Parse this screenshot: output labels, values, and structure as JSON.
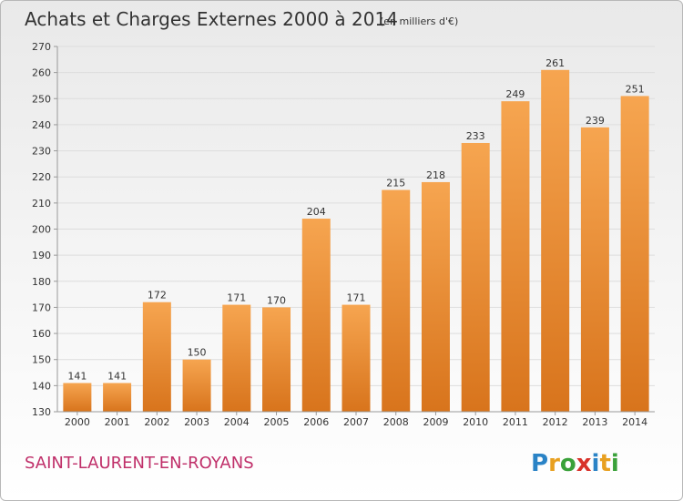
{
  "header": {
    "title": "Achats et Charges Externes 2000 à 2014",
    "subtitle": "(en milliers d'€)"
  },
  "footer": {
    "commune": "SAINT-LAURENT-EN-ROYANS",
    "commune_color": "#c0306a",
    "logo": "Proxiti"
  },
  "colors": {
    "bar_top": "#f6a550",
    "bar_bottom": "#d8741c",
    "grid": "#dddddd",
    "axis": "#999999"
  },
  "chart_data": {
    "type": "bar",
    "categories": [
      "2000",
      "2001",
      "2002",
      "2003",
      "2004",
      "2005",
      "2006",
      "2007",
      "2008",
      "2009",
      "2010",
      "2011",
      "2012",
      "2013",
      "2014"
    ],
    "values": [
      141,
      141,
      172,
      150,
      171,
      170,
      204,
      171,
      215,
      218,
      233,
      249,
      261,
      239,
      251
    ],
    "title": "Achats et Charges Externes 2000 à 2014",
    "subtitle": "(en milliers d'€)",
    "xlabel": "",
    "ylabel": "",
    "ylim": [
      130,
      270
    ],
    "yticks": [
      130,
      140,
      150,
      160,
      170,
      180,
      190,
      200,
      210,
      220,
      230,
      240,
      250,
      260,
      270
    ],
    "grid": true,
    "legend": "none"
  }
}
